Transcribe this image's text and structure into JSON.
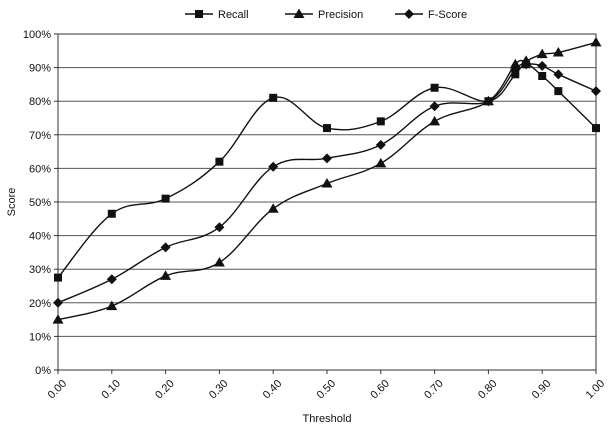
{
  "chart_data": {
    "type": "line",
    "xlabel": "Threshold",
    "ylabel": "Score",
    "xlim": [
      0,
      1
    ],
    "ylim": [
      0,
      100
    ],
    "x_ticks": [
      "0.00",
      "0.10",
      "0.20",
      "0.30",
      "0.40",
      "0.50",
      "0.60",
      "0.70",
      "0.80",
      "0.90",
      "1.00"
    ],
    "y_ticks": [
      "0%",
      "10%",
      "20%",
      "30%",
      "40%",
      "50%",
      "60%",
      "70%",
      "80%",
      "90%",
      "100%"
    ],
    "grid": "horizontal",
    "legend_position": "top-center",
    "series": [
      {
        "name": "Recall",
        "marker": "square",
        "color": "#111111",
        "x": [
          0.0,
          0.1,
          0.2,
          0.3,
          0.4,
          0.5,
          0.6,
          0.7,
          0.8,
          0.85,
          0.87,
          0.9,
          0.93,
          1.0
        ],
        "y": [
          27.5,
          46.5,
          51,
          62,
          81,
          72,
          74,
          84,
          80,
          88,
          91,
          87.5,
          83,
          72
        ]
      },
      {
        "name": "Precision",
        "marker": "triangle",
        "color": "#111111",
        "x": [
          0.0,
          0.1,
          0.2,
          0.3,
          0.4,
          0.5,
          0.6,
          0.7,
          0.8,
          0.85,
          0.87,
          0.9,
          0.93,
          1.0
        ],
        "y": [
          15,
          19,
          28,
          32,
          48,
          55.5,
          61.5,
          74,
          80,
          91,
          92,
          94,
          94.5,
          97.5
        ]
      },
      {
        "name": "F-Score",
        "marker": "diamond",
        "color": "#111111",
        "x": [
          0.0,
          0.1,
          0.2,
          0.3,
          0.4,
          0.5,
          0.6,
          0.7,
          0.8,
          0.85,
          0.87,
          0.9,
          0.93,
          1.0
        ],
        "y": [
          20,
          27,
          36.5,
          42.5,
          60.5,
          63,
          67,
          78.5,
          80,
          89.5,
          91,
          90.5,
          88,
          83
        ]
      }
    ]
  }
}
